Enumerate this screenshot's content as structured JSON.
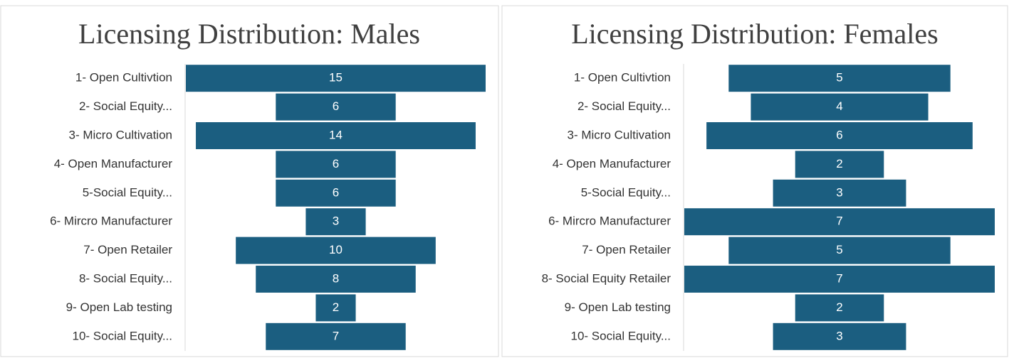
{
  "chart_data": [
    {
      "type": "funnel",
      "title": "Licensing Distribution: Males",
      "color": "#1b5e80",
      "categories": [
        "1- Open Cultivtion",
        "2- Social Equity...",
        "3- Micro Cultivation",
        "4- Open Manufacturer",
        "5-Social Equity...",
        "6- Mircro Manufacturer",
        "7- Open Retailer",
        "8- Social Equity...",
        "9- Open Lab testing",
        "10- Social Equity..."
      ],
      "values": [
        15,
        6,
        14,
        6,
        6,
        3,
        10,
        8,
        2,
        7
      ]
    },
    {
      "type": "funnel",
      "title": "Licensing Distribution: Females",
      "color": "#1b5e80",
      "categories": [
        "1- Open Cultivtion",
        "2- Social Equity...",
        "3- Micro Cultivation",
        "4- Open Manufacturer",
        "5-Social Equity...",
        "6- Mircro Manufacturer",
        "7- Open Retailer",
        "8- Social Equity Retailer",
        "9- Open Lab testing",
        "10- Social Equity..."
      ],
      "values": [
        5,
        4,
        6,
        2,
        3,
        7,
        5,
        7,
        2,
        3
      ]
    }
  ]
}
